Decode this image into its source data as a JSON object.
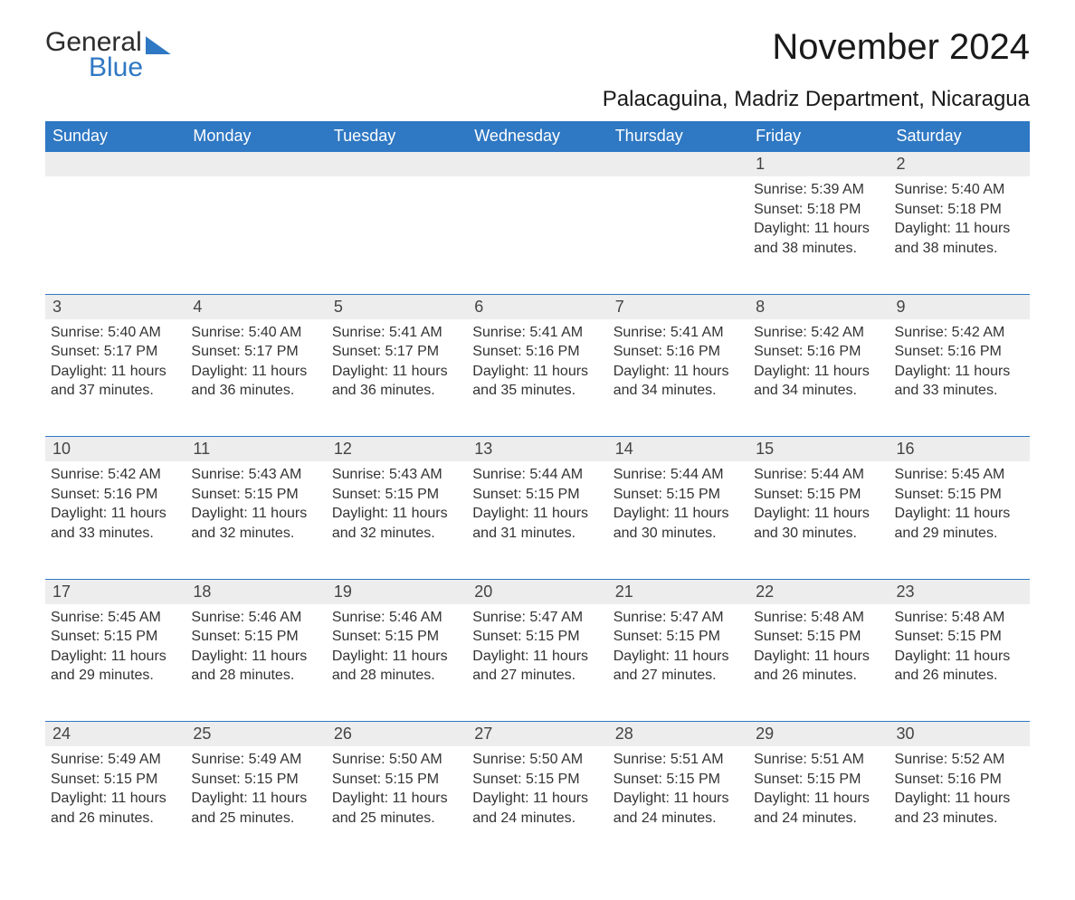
{
  "brand": {
    "part1": "General",
    "part2": "Blue",
    "brand_color": "#2f78c3"
  },
  "title": "November 2024",
  "location": "Palacaguina, Madriz Department, Nicaragua",
  "colors": {
    "header_bg": "#2f78c3",
    "header_text": "#ffffff",
    "daynum_bg": "#ededed",
    "daynum_text": "#444444",
    "border": "#2f78c3",
    "body_text": "#333333",
    "background": "#ffffff"
  },
  "fonts": {
    "title_size": 40,
    "location_size": 24,
    "header_size": 18,
    "daynum_size": 18,
    "content_size": 16
  },
  "weekdays": [
    "Sunday",
    "Monday",
    "Tuesday",
    "Wednesday",
    "Thursday",
    "Friday",
    "Saturday"
  ],
  "weeks": [
    [
      null,
      null,
      null,
      null,
      null,
      {
        "n": "1",
        "sunrise": "Sunrise: 5:39 AM",
        "sunset": "Sunset: 5:18 PM",
        "daylight": "Daylight: 11 hours and 38 minutes."
      },
      {
        "n": "2",
        "sunrise": "Sunrise: 5:40 AM",
        "sunset": "Sunset: 5:18 PM",
        "daylight": "Daylight: 11 hours and 38 minutes."
      }
    ],
    [
      {
        "n": "3",
        "sunrise": "Sunrise: 5:40 AM",
        "sunset": "Sunset: 5:17 PM",
        "daylight": "Daylight: 11 hours and 37 minutes."
      },
      {
        "n": "4",
        "sunrise": "Sunrise: 5:40 AM",
        "sunset": "Sunset: 5:17 PM",
        "daylight": "Daylight: 11 hours and 36 minutes."
      },
      {
        "n": "5",
        "sunrise": "Sunrise: 5:41 AM",
        "sunset": "Sunset: 5:17 PM",
        "daylight": "Daylight: 11 hours and 36 minutes."
      },
      {
        "n": "6",
        "sunrise": "Sunrise: 5:41 AM",
        "sunset": "Sunset: 5:16 PM",
        "daylight": "Daylight: 11 hours and 35 minutes."
      },
      {
        "n": "7",
        "sunrise": "Sunrise: 5:41 AM",
        "sunset": "Sunset: 5:16 PM",
        "daylight": "Daylight: 11 hours and 34 minutes."
      },
      {
        "n": "8",
        "sunrise": "Sunrise: 5:42 AM",
        "sunset": "Sunset: 5:16 PM",
        "daylight": "Daylight: 11 hours and 34 minutes."
      },
      {
        "n": "9",
        "sunrise": "Sunrise: 5:42 AM",
        "sunset": "Sunset: 5:16 PM",
        "daylight": "Daylight: 11 hours and 33 minutes."
      }
    ],
    [
      {
        "n": "10",
        "sunrise": "Sunrise: 5:42 AM",
        "sunset": "Sunset: 5:16 PM",
        "daylight": "Daylight: 11 hours and 33 minutes."
      },
      {
        "n": "11",
        "sunrise": "Sunrise: 5:43 AM",
        "sunset": "Sunset: 5:15 PM",
        "daylight": "Daylight: 11 hours and 32 minutes."
      },
      {
        "n": "12",
        "sunrise": "Sunrise: 5:43 AM",
        "sunset": "Sunset: 5:15 PM",
        "daylight": "Daylight: 11 hours and 32 minutes."
      },
      {
        "n": "13",
        "sunrise": "Sunrise: 5:44 AM",
        "sunset": "Sunset: 5:15 PM",
        "daylight": "Daylight: 11 hours and 31 minutes."
      },
      {
        "n": "14",
        "sunrise": "Sunrise: 5:44 AM",
        "sunset": "Sunset: 5:15 PM",
        "daylight": "Daylight: 11 hours and 30 minutes."
      },
      {
        "n": "15",
        "sunrise": "Sunrise: 5:44 AM",
        "sunset": "Sunset: 5:15 PM",
        "daylight": "Daylight: 11 hours and 30 minutes."
      },
      {
        "n": "16",
        "sunrise": "Sunrise: 5:45 AM",
        "sunset": "Sunset: 5:15 PM",
        "daylight": "Daylight: 11 hours and 29 minutes."
      }
    ],
    [
      {
        "n": "17",
        "sunrise": "Sunrise: 5:45 AM",
        "sunset": "Sunset: 5:15 PM",
        "daylight": "Daylight: 11 hours and 29 minutes."
      },
      {
        "n": "18",
        "sunrise": "Sunrise: 5:46 AM",
        "sunset": "Sunset: 5:15 PM",
        "daylight": "Daylight: 11 hours and 28 minutes."
      },
      {
        "n": "19",
        "sunrise": "Sunrise: 5:46 AM",
        "sunset": "Sunset: 5:15 PM",
        "daylight": "Daylight: 11 hours and 28 minutes."
      },
      {
        "n": "20",
        "sunrise": "Sunrise: 5:47 AM",
        "sunset": "Sunset: 5:15 PM",
        "daylight": "Daylight: 11 hours and 27 minutes."
      },
      {
        "n": "21",
        "sunrise": "Sunrise: 5:47 AM",
        "sunset": "Sunset: 5:15 PM",
        "daylight": "Daylight: 11 hours and 27 minutes."
      },
      {
        "n": "22",
        "sunrise": "Sunrise: 5:48 AM",
        "sunset": "Sunset: 5:15 PM",
        "daylight": "Daylight: 11 hours and 26 minutes."
      },
      {
        "n": "23",
        "sunrise": "Sunrise: 5:48 AM",
        "sunset": "Sunset: 5:15 PM",
        "daylight": "Daylight: 11 hours and 26 minutes."
      }
    ],
    [
      {
        "n": "24",
        "sunrise": "Sunrise: 5:49 AM",
        "sunset": "Sunset: 5:15 PM",
        "daylight": "Daylight: 11 hours and 26 minutes."
      },
      {
        "n": "25",
        "sunrise": "Sunrise: 5:49 AM",
        "sunset": "Sunset: 5:15 PM",
        "daylight": "Daylight: 11 hours and 25 minutes."
      },
      {
        "n": "26",
        "sunrise": "Sunrise: 5:50 AM",
        "sunset": "Sunset: 5:15 PM",
        "daylight": "Daylight: 11 hours and 25 minutes."
      },
      {
        "n": "27",
        "sunrise": "Sunrise: 5:50 AM",
        "sunset": "Sunset: 5:15 PM",
        "daylight": "Daylight: 11 hours and 24 minutes."
      },
      {
        "n": "28",
        "sunrise": "Sunrise: 5:51 AM",
        "sunset": "Sunset: 5:15 PM",
        "daylight": "Daylight: 11 hours and 24 minutes."
      },
      {
        "n": "29",
        "sunrise": "Sunrise: 5:51 AM",
        "sunset": "Sunset: 5:15 PM",
        "daylight": "Daylight: 11 hours and 24 minutes."
      },
      {
        "n": "30",
        "sunrise": "Sunrise: 5:52 AM",
        "sunset": "Sunset: 5:16 PM",
        "daylight": "Daylight: 11 hours and 23 minutes."
      }
    ]
  ]
}
